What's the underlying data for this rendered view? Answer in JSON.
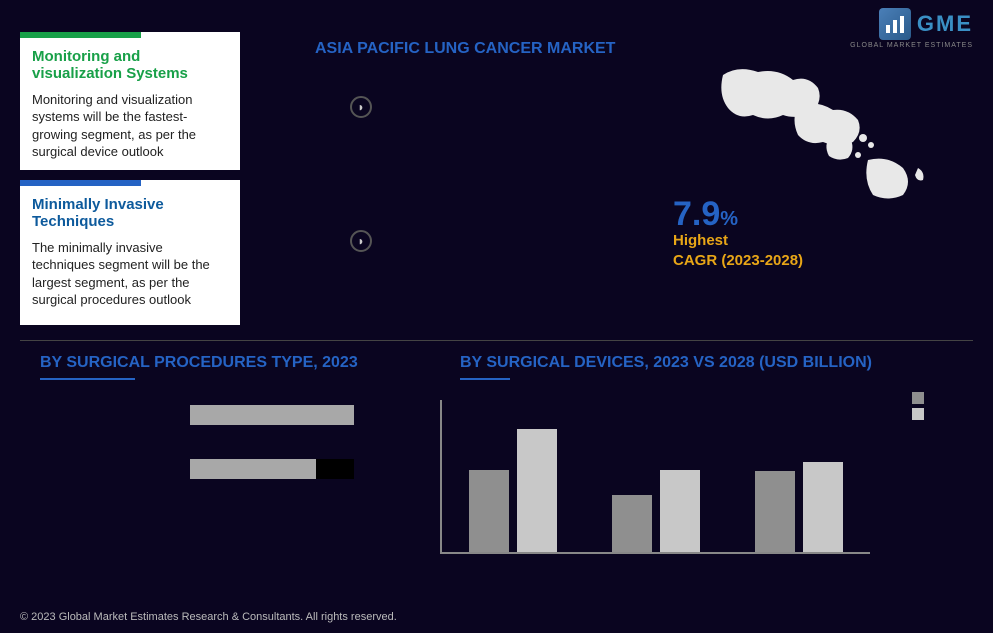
{
  "logo": {
    "text": "GME",
    "sub": "GLOBAL MARKET ESTIMATES"
  },
  "title": "ASIA PACIFIC LUNG CANCER MARKET",
  "cards": [
    {
      "title": "Monitoring and visualization Systems",
      "body": "Monitoring and visualization systems will be the fastest-growing segment, as per the surgical device outlook",
      "accent": "#18a048"
    },
    {
      "title": "Minimally Invasive Techniques",
      "body": "The minimally invasive techniques segment will be the largest segment, as per the surgical procedures outlook",
      "accent": "#2563c4"
    }
  ],
  "cagr": {
    "value": "7.9",
    "pct": "%",
    "label1": "Highest",
    "label2": "CAGR (2023-2028)",
    "color": "#2563c4",
    "label_color": "#e8a617"
  },
  "section_titles": {
    "left": "BY  SURGICAL PROCEDURES TYPE, 2023",
    "right": "BY SURGICAL DEVICES, 2023 VS 2028 (USD BILLION)"
  },
  "hbar": {
    "categories": [
      "",
      ""
    ],
    "series_a_color": "#a8a8a8",
    "series_b_color": "#000000",
    "rows": [
      {
        "a_pct": 78,
        "b_pct": 0
      },
      {
        "a_pct": 60,
        "b_pct": 78
      }
    ]
  },
  "vbar": {
    "legend": [
      {
        "label": "",
        "color": "#8f8f8f"
      },
      {
        "label": "",
        "color": "#c8c8c8"
      }
    ],
    "categories": [
      "",
      "",
      ""
    ],
    "max": 100,
    "groups": [
      {
        "a": 55,
        "b": 82
      },
      {
        "a": 38,
        "b": 55
      },
      {
        "a": 54,
        "b": 60
      }
    ],
    "color_a": "#8f8f8f",
    "color_b": "#c8c8c8"
  },
  "copyright": "© 2023 Global Market Estimates Research & Consultants. All rights reserved."
}
